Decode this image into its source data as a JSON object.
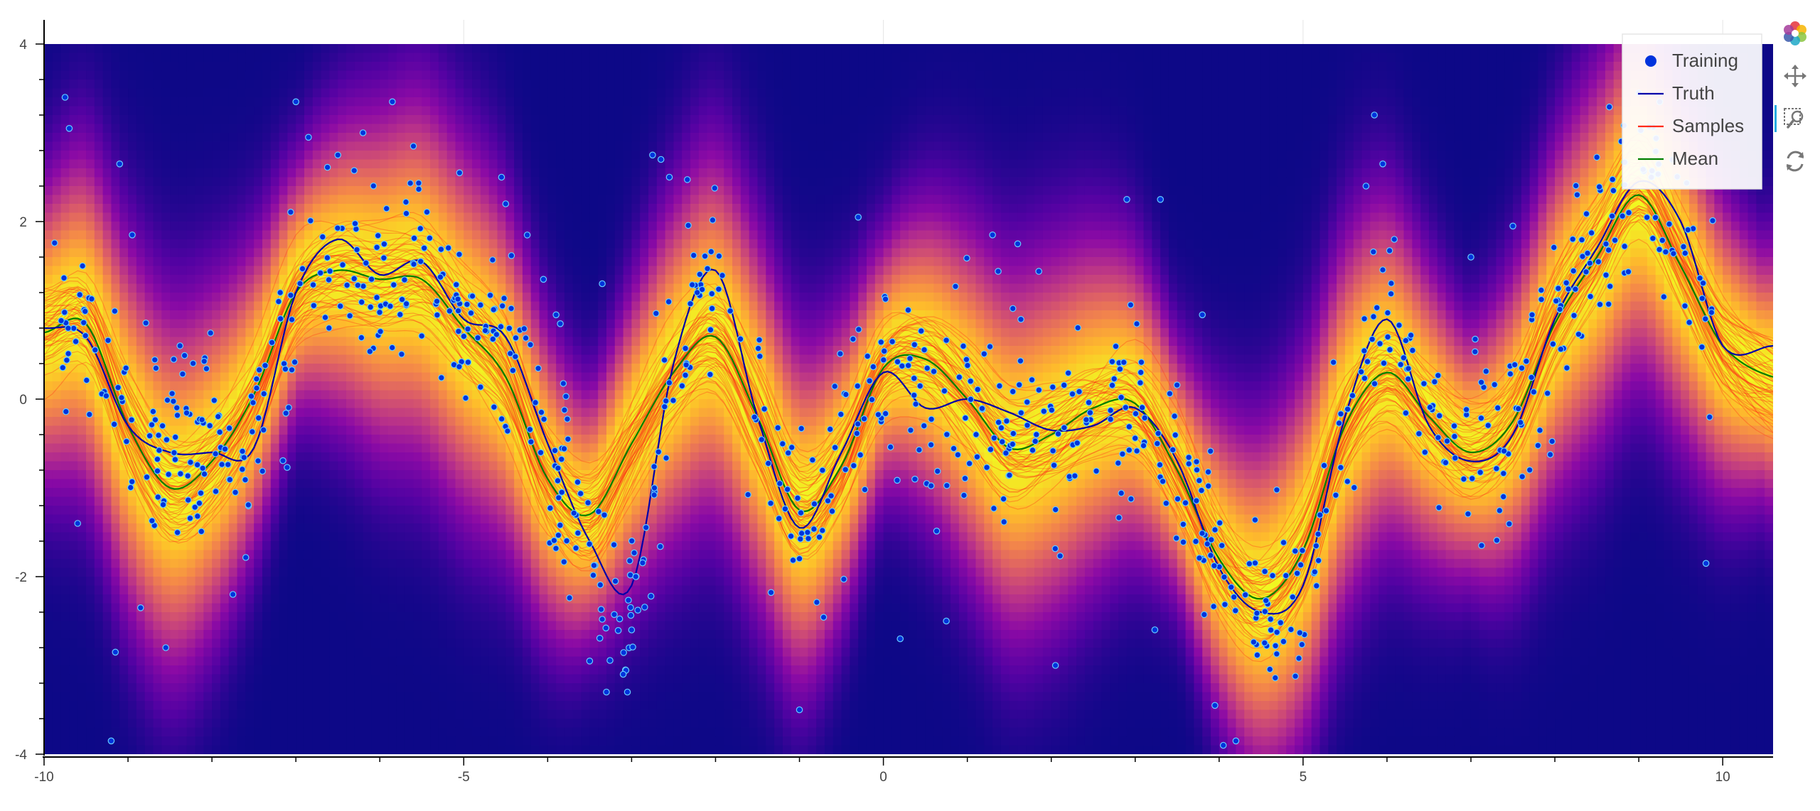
{
  "chart_data": {
    "type": "scatter",
    "title": "",
    "xlabel": "",
    "ylabel": "",
    "xlim": [
      -10,
      10.6
    ],
    "ylim": [
      -4,
      4
    ],
    "x_ticks": [
      -10,
      -5,
      0,
      5,
      10
    ],
    "y_ticks": [
      -4,
      -2,
      0,
      2,
      4
    ],
    "x_tick_labels": [
      "-10",
      "-5",
      "0",
      "5",
      "10"
    ],
    "y_tick_labels": [
      "-4",
      "-2",
      "0",
      "2",
      "4"
    ],
    "grid": true,
    "legend_position": "top-right",
    "background": "heatmap of posterior density (plasma colormap)",
    "colors": {
      "training": "#0033dd",
      "training_edge": "#66ccff",
      "truth": "#0000aa",
      "samples": "#ff2a1a",
      "mean": "#008000"
    },
    "series": [
      {
        "name": "Truth",
        "type": "line",
        "x": [
          -10,
          -9.5,
          -9,
          -8.5,
          -8,
          -7.5,
          -7,
          -6.5,
          -6,
          -5.5,
          -5,
          -4.5,
          -4,
          -3.5,
          -3,
          -2.5,
          -2,
          -1.5,
          -1,
          -0.5,
          0,
          0.5,
          1,
          1.5,
          2,
          2.5,
          3,
          3.5,
          4,
          4.5,
          5,
          5.5,
          6,
          6.5,
          7,
          7.5,
          8,
          8.5,
          9,
          9.5,
          10,
          10.6
        ],
        "y": [
          0.8,
          0.7,
          -0.3,
          -0.6,
          -0.6,
          -0.55,
          1.2,
          1.8,
          1.4,
          1.55,
          0.9,
          0.7,
          -0.5,
          -1.6,
          -2.1,
          0.4,
          1.45,
          -0.2,
          -1.45,
          -0.6,
          0.3,
          -0.1,
          0.0,
          -0.15,
          -0.35,
          -0.3,
          -0.1,
          -0.7,
          -1.9,
          -2.4,
          -2.1,
          -0.2,
          0.9,
          -0.3,
          -0.7,
          -0.4,
          0.9,
          1.7,
          2.45,
          2.0,
          0.6,
          0.6
        ]
      },
      {
        "name": "Mean",
        "type": "line",
        "x": [
          -10,
          -9.5,
          -9,
          -8.5,
          -8,
          -7.5,
          -7,
          -6.5,
          -6,
          -5.5,
          -5,
          -4.5,
          -4,
          -3.5,
          -3,
          -2.5,
          -2,
          -1.5,
          -1,
          -0.5,
          0,
          0.5,
          1,
          1.5,
          2,
          2.5,
          3,
          3.5,
          4,
          4.5,
          5,
          5.5,
          6,
          6.5,
          7,
          7.5,
          8,
          8.5,
          9,
          9.5,
          10,
          10.6
        ],
        "y": [
          0.75,
          0.85,
          -0.3,
          -1.0,
          -0.7,
          0.05,
          1.2,
          1.45,
          1.35,
          1.35,
          0.8,
          0.25,
          -0.9,
          -1.3,
          -0.5,
          0.3,
          0.7,
          -0.2,
          -1.25,
          -0.75,
          0.35,
          0.45,
          0.0,
          -0.55,
          -0.4,
          -0.1,
          -0.05,
          -0.8,
          -1.8,
          -2.25,
          -1.7,
          -0.3,
          0.3,
          -0.2,
          -0.6,
          -0.25,
          0.85,
          1.6,
          2.3,
          1.5,
          0.6,
          0.25
        ]
      },
      {
        "name": "Samples",
        "type": "line",
        "sample_count": 60,
        "spread": 0.5
      },
      {
        "name": "Training",
        "type": "scatter",
        "point_count": 900,
        "noise_std": 0.55,
        "points": [
          [
            -9.75,
            3.4
          ],
          [
            -9.7,
            3.05
          ],
          [
            -9.1,
            2.65
          ],
          [
            -8.95,
            1.85
          ],
          [
            -9.15,
            -2.85
          ],
          [
            -9.2,
            -3.85
          ],
          [
            -8.85,
            -2.35
          ],
          [
            -8.55,
            -2.8
          ],
          [
            -9.6,
            -1.4
          ],
          [
            -7.75,
            -2.2
          ],
          [
            -7.0,
            3.35
          ],
          [
            -6.85,
            2.95
          ],
          [
            -6.5,
            2.75
          ],
          [
            -6.2,
            3.0
          ],
          [
            -5.85,
            3.35
          ],
          [
            -5.6,
            2.85
          ],
          [
            -5.05,
            2.55
          ],
          [
            -4.55,
            2.5
          ],
          [
            -4.5,
            2.2
          ],
          [
            -4.05,
            1.35
          ],
          [
            -3.9,
            0.95
          ],
          [
            -3.85,
            0.85
          ],
          [
            -3.35,
            1.3
          ],
          [
            -2.75,
            2.75
          ],
          [
            -2.65,
            2.7
          ],
          [
            -2.55,
            2.5
          ],
          [
            -3.5,
            -2.95
          ],
          [
            -3.3,
            -3.3
          ],
          [
            -3.05,
            -3.3
          ],
          [
            -3.1,
            -3.1
          ],
          [
            -3.0,
            -2.6
          ],
          [
            -2.95,
            -2.0
          ],
          [
            -1.0,
            -3.5
          ],
          [
            -0.3,
            2.05
          ],
          [
            1.3,
            1.85
          ],
          [
            1.6,
            1.75
          ],
          [
            2.9,
            2.25
          ],
          [
            3.3,
            2.25
          ],
          [
            3.8,
            0.95
          ],
          [
            0.2,
            -2.7
          ],
          [
            0.75,
            -2.5
          ],
          [
            2.05,
            -3.0
          ],
          [
            4.05,
            -3.9
          ],
          [
            4.2,
            -3.85
          ],
          [
            3.95,
            -3.45
          ],
          [
            5.85,
            3.2
          ],
          [
            5.95,
            2.65
          ],
          [
            5.75,
            2.4
          ],
          [
            7.0,
            1.6
          ],
          [
            7.5,
            1.95
          ],
          [
            9.0,
            3.45
          ],
          [
            9.25,
            3.35
          ],
          [
            9.15,
            2.5
          ],
          [
            9.8,
            -1.85
          ],
          [
            9.55,
            1.05
          ]
        ]
      }
    ],
    "legend": [
      "Training",
      "Truth",
      "Samples",
      "Mean"
    ]
  },
  "toolbar": {
    "tools": [
      {
        "name": "bokeh-logo-icon"
      },
      {
        "name": "pan-icon"
      },
      {
        "name": "box-zoom-icon",
        "active": true
      },
      {
        "name": "reset-icon"
      }
    ]
  }
}
